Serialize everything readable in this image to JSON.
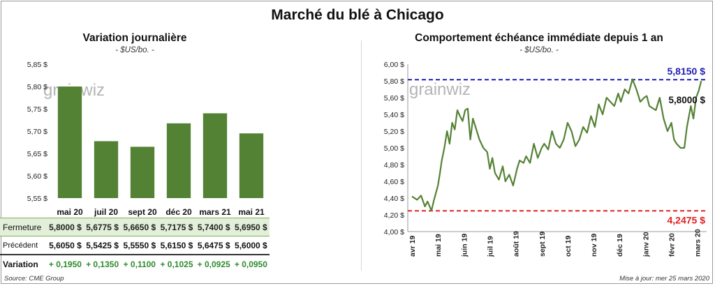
{
  "title": "Marché du blé à Chicago",
  "left_panel": {
    "title": "Variation journalière",
    "subtitle": "- $US/bo. -",
    "watermark": "grainwiz",
    "table": {
      "rows": [
        {
          "label": "Fermeture",
          "values": [
            "5,8000 $",
            "5,6775 $",
            "5,6650 $",
            "5,7175 $",
            "5,7400 $",
            "5,6950 $"
          ]
        },
        {
          "label": "Précédent",
          "values": [
            "5,6050 $",
            "5,5425 $",
            "5,5550 $",
            "5,6150 $",
            "5,6475 $",
            "5,6000 $"
          ]
        },
        {
          "label": "Variation",
          "values": [
            "+ 0,1950",
            "+ 0,1350",
            "+ 0,1100",
            "+ 0,1025",
            "+ 0,0925",
            "+ 0,0950"
          ]
        }
      ]
    }
  },
  "right_panel": {
    "title": "Comportement  échéance immédiate depuis 1 an",
    "subtitle": "- $US/bo. -",
    "watermark": "grainwiz",
    "max_label": "5,8150 $",
    "min_label": "4,2475 $",
    "last_label": "5,8000 $"
  },
  "source": "Source: CME Group",
  "updated": "Mise à jour: mer 25 mars 2020",
  "chart_data": [
    {
      "type": "bar",
      "title": "Variation journalière",
      "subtitle": "- $US/bo. -",
      "categories": [
        "mai 20",
        "juil 20",
        "sept 20",
        "déc 20",
        "mars 21",
        "mai 21"
      ],
      "values": [
        5.8,
        5.6775,
        5.665,
        5.7175,
        5.74,
        5.695
      ],
      "ylim": [
        5.55,
        5.85
      ],
      "yticks": [
        "5,55 $",
        "5,60 $",
        "5,65 $",
        "5,70 $",
        "5,75 $",
        "5,80 $",
        "5,85 $"
      ],
      "color": "#548235",
      "grid": false
    },
    {
      "type": "line",
      "title": "Comportement  échéance immédiate depuis 1 an",
      "subtitle": "- $US/bo. -",
      "x_ticks": [
        "avr 19",
        "mai 19",
        "juin 19",
        "juil 19",
        "août 19",
        "sept 19",
        "oct 19",
        "nov 19",
        "déc 19",
        "janv 20",
        "févr 20",
        "mars 20"
      ],
      "yticks": [
        "4,00 $",
        "4,20 $",
        "4,40 $",
        "4,60 $",
        "4,80 $",
        "5,00 $",
        "5,20 $",
        "5,40 $",
        "5,60 $",
        "5,80 $",
        "6,00 $"
      ],
      "ylim": [
        4.0,
        6.0
      ],
      "color": "#548235",
      "max_line": {
        "value": 5.815,
        "label": "5,8150 $",
        "color": "#1f1fb4"
      },
      "min_line": {
        "value": 4.2475,
        "label": "4,2475 $",
        "color": "#e02020"
      },
      "last_value": {
        "value": 5.8,
        "label": "5,8000 $"
      },
      "series": [
        {
          "x": [
            0,
            0.2,
            0.35,
            0.5,
            0.6,
            0.75,
            0.85,
            1.0,
            1.08,
            1.15,
            1.25,
            1.35,
            1.45,
            1.55,
            1.65,
            1.75,
            1.85,
            1.95,
            2.05,
            2.15,
            2.25,
            2.35,
            2.5,
            2.6,
            2.75,
            2.9,
            3.0,
            3.1,
            3.2,
            3.35,
            3.5,
            3.6,
            3.75,
            3.9,
            4.05,
            4.15,
            4.3,
            4.4,
            4.55,
            4.7,
            4.85,
            5.0,
            5.1,
            5.25,
            5.4,
            5.55,
            5.7,
            5.85,
            6.0,
            6.15,
            6.3,
            6.45,
            6.6,
            6.75,
            6.9,
            7.05,
            7.2,
            7.35,
            7.5,
            7.65,
            7.8,
            7.95,
            8.05,
            8.2,
            8.35,
            8.5,
            8.65,
            8.8,
            8.95,
            9.05,
            9.15,
            9.25,
            9.4,
            9.55,
            9.7,
            9.85,
            10.0,
            10.1,
            10.2,
            10.35,
            10.5,
            10.6,
            10.75,
            10.85,
            10.95,
            11.05,
            11.15
          ],
          "y": [
            4.42,
            4.38,
            4.43,
            4.3,
            4.36,
            4.25,
            4.38,
            4.55,
            4.7,
            4.85,
            5.0,
            5.2,
            5.05,
            5.3,
            5.22,
            5.45,
            5.38,
            5.32,
            5.45,
            5.47,
            5.1,
            5.35,
            5.2,
            5.1,
            5.0,
            4.95,
            4.75,
            4.88,
            4.7,
            4.62,
            4.78,
            4.6,
            4.68,
            4.55,
            4.75,
            4.85,
            4.82,
            4.9,
            4.82,
            5.05,
            4.88,
            5.0,
            5.05,
            4.98,
            5.2,
            5.05,
            5.0,
            5.1,
            5.3,
            5.2,
            5.02,
            5.1,
            5.25,
            5.18,
            5.38,
            5.25,
            5.52,
            5.4,
            5.6,
            5.55,
            5.5,
            5.65,
            5.55,
            5.7,
            5.65,
            5.82,
            5.7,
            5.55,
            5.6,
            5.62,
            5.5,
            5.48,
            5.45,
            5.6,
            5.35,
            5.2,
            5.3,
            5.1,
            5.05,
            5.0,
            5.0,
            5.25,
            5.5,
            5.35,
            5.6,
            5.68,
            5.8
          ]
        }
      ]
    }
  ]
}
